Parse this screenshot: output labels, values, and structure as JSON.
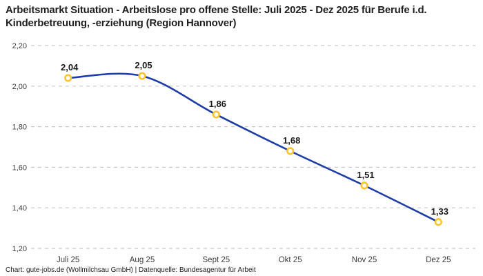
{
  "header": {
    "title": "Arbeitsmarkt Situation - Arbeitslose pro offene Stelle: Juli 2025 - Dez 2025 für Berufe i.d. Kinderbetreuung, -erziehung (Region Hannover)"
  },
  "chart_data": {
    "type": "line",
    "title": "Arbeitsmarkt Situation - Arbeitslose pro offene Stelle: Juli 2025 - Dez 2025 für Berufe i.d. Kinderbetreuung, -erziehung (Region Hannover)",
    "categories": [
      "Juli 25",
      "Aug 25",
      "Sept 25",
      "Okt 25",
      "Nov 25",
      "Dez 25"
    ],
    "values": [
      2.04,
      2.05,
      1.86,
      1.68,
      1.51,
      1.33
    ],
    "value_labels": [
      "2,04",
      "2,05",
      "1,86",
      "1,68",
      "1,51",
      "1,33"
    ],
    "y_tick_labels": [
      "2,20",
      "2,00",
      "1,80",
      "1,60",
      "1,40",
      "1,20"
    ],
    "y_tick_values": [
      2.2,
      2.0,
      1.8,
      1.6,
      1.4,
      1.2
    ],
    "ylim": [
      1.2,
      2.2
    ],
    "xlabel": "",
    "ylabel": "",
    "grid": "horizontal-dashed",
    "legend": "none",
    "colors": {
      "line": "#1e3ca8",
      "marker_ring": "#fdc42c",
      "marker_fill": "#ffffff",
      "grid": "#c9c9c9",
      "tick_text": "#3c3c3c",
      "value_label_text": "#1a1a1a"
    }
  },
  "footer": {
    "credit": "Chart: gute-jobs.de (Wollmilchsau GmbH) | Datenquelle: Bundesagentur für Arbeit"
  }
}
